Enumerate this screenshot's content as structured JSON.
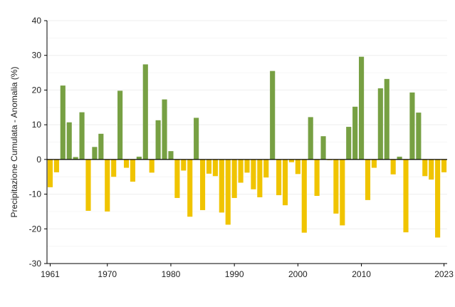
{
  "chart_data": {
    "type": "bar",
    "title": "",
    "xlabel": "",
    "ylabel": "Precipitazione Cumulata - Anomalia (%)",
    "ylim": [
      -30,
      40
    ],
    "yticks": [
      -30,
      -20,
      -10,
      0,
      10,
      20,
      30,
      40
    ],
    "xtick_labels": [
      "1961",
      "1970",
      "1980",
      "1990",
      "2000",
      "2010",
      "2023"
    ],
    "grid": true,
    "legend": "none",
    "colors": {
      "positive": "#77a043",
      "negative": "#f0c400",
      "zero_line": "#000000",
      "grid": "#eeeeee"
    },
    "x": [
      1961,
      1962,
      1963,
      1964,
      1965,
      1966,
      1967,
      1968,
      1969,
      1970,
      1971,
      1972,
      1973,
      1974,
      1975,
      1976,
      1977,
      1978,
      1979,
      1980,
      1981,
      1982,
      1983,
      1984,
      1985,
      1986,
      1987,
      1988,
      1989,
      1990,
      1991,
      1992,
      1993,
      1994,
      1995,
      1996,
      1997,
      1998,
      1999,
      2000,
      2001,
      2002,
      2003,
      2004,
      2005,
      2006,
      2007,
      2008,
      2009,
      2010,
      2011,
      2012,
      2013,
      2014,
      2015,
      2016,
      2017,
      2018,
      2019,
      2020,
      2021,
      2022,
      2023
    ],
    "values": [
      -8,
      -3.7,
      21.3,
      10.7,
      0.7,
      13.6,
      -14.8,
      3.6,
      7.4,
      -15,
      -5,
      19.8,
      -2.4,
      -6.4,
      0.8,
      27.4,
      -3.8,
      11.3,
      17.3,
      2.4,
      -11.1,
      -3.2,
      -16.5,
      12,
      -14.6,
      -4.1,
      -4.8,
      -15.3,
      -18.8,
      -11.1,
      -6.7,
      -3.8,
      -8.6,
      -10.9,
      -5.2,
      25.5,
      -10.3,
      -13.2,
      -0.8,
      -4.2,
      -21.1,
      12.2,
      -10.5,
      6.7,
      -0.2,
      -15.6,
      -19,
      9.4,
      15.2,
      29.6,
      -11.7,
      -2.4,
      20.5,
      23.2,
      -4.3,
      0.8,
      -21,
      19.3,
      13.5,
      -4.8,
      -5.8,
      -22.5,
      -3.7
    ]
  }
}
